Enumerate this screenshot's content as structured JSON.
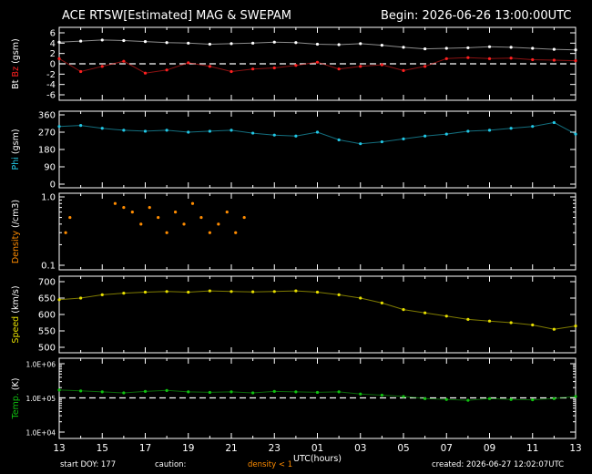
{
  "header": {
    "title": "ACE RTSW[Estimated] MAG & SWEPAM",
    "begin": "Begin: 2026-06-26 13:00:00UTC"
  },
  "footer": {
    "start_doy": "start DOY: 177",
    "caution": "caution:",
    "density_note": "density < 1",
    "created": "created: 2026-06-27 12:02:07UTC"
  },
  "colors": {
    "bt": "#ffffff",
    "bz": "#ff2020",
    "phi": "#22c8e6",
    "density": "#ff8c00",
    "speed": "#e8e000",
    "temp": "#10c010",
    "axis": "#ffffff",
    "background": "#000000"
  },
  "chart_data": {
    "type": "scatter",
    "xlabel": "UTC(hours)",
    "x_ticks": [
      "13",
      "15",
      "17",
      "19",
      "21",
      "23",
      "01",
      "03",
      "05",
      "07",
      "09",
      "11",
      "13"
    ],
    "x_range_hours": [
      0,
      24
    ],
    "panels": [
      {
        "id": "mag",
        "ylabel_parts": [
          {
            "text": "Bt",
            "color": "#ffffff"
          },
          {
            "text": "Bz",
            "color": "#ff2020"
          },
          {
            "text": "(gsm)",
            "color": "#ffffff"
          }
        ],
        "ylim": [
          -6,
          6
        ],
        "yticks": [
          "-6",
          "-4",
          "-2",
          "0",
          "2",
          "4",
          "6"
        ],
        "ytick_values": [
          -6,
          -4,
          -2,
          0,
          2,
          4,
          6
        ],
        "reference_line": 0,
        "series": [
          {
            "name": "Bt",
            "color": "#ffffff",
            "x": [
              0,
              1,
              2,
              3,
              4,
              5,
              6,
              7,
              8,
              9,
              10,
              11,
              12,
              13,
              14,
              15,
              16,
              17,
              18,
              19,
              20,
              21,
              22,
              23,
              24
            ],
            "y": [
              4.2,
              4.4,
              4.6,
              4.5,
              4.3,
              4.1,
              4.0,
              3.8,
              3.9,
              4.0,
              4.2,
              4.1,
              3.8,
              3.7,
              3.9,
              3.6,
              3.2,
              2.9,
              3.0,
              3.1,
              3.3,
              3.2,
              3.0,
              2.8,
              2.7
            ]
          },
          {
            "name": "Bz",
            "color": "#ff2020",
            "x": [
              0,
              1,
              2,
              3,
              4,
              5,
              6,
              7,
              8,
              9,
              10,
              11,
              12,
              13,
              14,
              15,
              16,
              17,
              18,
              19,
              20,
              21,
              22,
              23,
              24
            ],
            "y": [
              1.0,
              -1.5,
              -0.5,
              0.5,
              -1.8,
              -1.2,
              0.2,
              -0.5,
              -1.5,
              -1.0,
              -0.8,
              -0.3,
              0.3,
              -1.0,
              -0.5,
              -0.2,
              -1.3,
              -0.5,
              1.0,
              1.2,
              1.0,
              1.1,
              0.8,
              0.7,
              0.6
            ]
          }
        ]
      },
      {
        "id": "phi",
        "ylabel_parts": [
          {
            "text": "Phi",
            "color": "#22c8e6"
          },
          {
            "text": "(gsm)",
            "color": "#ffffff"
          }
        ],
        "ylim": [
          0,
          360
        ],
        "yticks": [
          "0",
          "90",
          "180",
          "270",
          "360"
        ],
        "ytick_values": [
          0,
          90,
          180,
          270,
          360
        ],
        "series": [
          {
            "name": "Phi",
            "color": "#22c8e6",
            "x": [
              0,
              1,
              2,
              3,
              4,
              5,
              6,
              7,
              8,
              9,
              10,
              11,
              12,
              13,
              14,
              15,
              16,
              17,
              18,
              19,
              20,
              21,
              22,
              23,
              24
            ],
            "y": [
              300,
              305,
              290,
              280,
              275,
              280,
              270,
              275,
              280,
              265,
              255,
              250,
              270,
              230,
              210,
              220,
              235,
              250,
              260,
              275,
              280,
              290,
              300,
              320,
              260
            ]
          }
        ]
      },
      {
        "id": "density",
        "ylabel_parts": [
          {
            "text": "Density",
            "color": "#ff8c00"
          },
          {
            "text": "(/cm3)",
            "color": "#ffffff"
          }
        ],
        "ylim": [
          0.1,
          1.0
        ],
        "yscale": "log",
        "yticks": [
          "0.1",
          "1.0"
        ],
        "ytick_values": [
          0.1,
          1.0
        ],
        "series": [
          {
            "name": "Density",
            "color": "#ff8c00",
            "x": [
              0.3,
              0.5,
              2.6,
              3.0,
              3.4,
              3.8,
              4.2,
              4.6,
              5.0,
              5.4,
              5.8,
              6.2,
              6.6,
              7.0,
              7.4,
              7.8,
              8.2,
              8.6
            ],
            "y": [
              0.3,
              0.5,
              0.8,
              0.7,
              0.6,
              0.4,
              0.7,
              0.5,
              0.3,
              0.6,
              0.4,
              0.8,
              0.5,
              0.3,
              0.4,
              0.6,
              0.3,
              0.5
            ]
          }
        ]
      },
      {
        "id": "speed",
        "ylabel_parts": [
          {
            "text": "Speed",
            "color": "#e8e000"
          },
          {
            "text": "(km/s)",
            "color": "#ffffff"
          }
        ],
        "ylim": [
          500,
          700
        ],
        "yticks": [
          "500",
          "550",
          "600",
          "650",
          "700"
        ],
        "ytick_values": [
          500,
          550,
          600,
          650,
          700
        ],
        "series": [
          {
            "name": "Speed",
            "color": "#e8e000",
            "x": [
              0,
              1,
              2,
              3,
              4,
              5,
              6,
              7,
              8,
              9,
              10,
              11,
              12,
              13,
              14,
              15,
              16,
              17,
              18,
              19,
              20,
              21,
              22,
              23,
              24
            ],
            "y": [
              645,
              650,
              660,
              665,
              668,
              670,
              668,
              672,
              670,
              669,
              670,
              672,
              668,
              660,
              650,
              635,
              615,
              605,
              595,
              585,
              580,
              575,
              568,
              555,
              565
            ]
          }
        ]
      },
      {
        "id": "temp",
        "ylabel_parts": [
          {
            "text": "Temp.",
            "color": "#10c010"
          },
          {
            "text": "(K)",
            "color": "#ffffff"
          }
        ],
        "ylim": [
          10000,
          1000000
        ],
        "yscale": "log",
        "yticks": [
          "1.0E+04",
          "1.0E+05",
          "1.0E+06"
        ],
        "ytick_values": [
          10000,
          100000,
          1000000
        ],
        "reference_line": 100000,
        "series": [
          {
            "name": "Temp",
            "color": "#10c010",
            "x": [
              0,
              1,
              2,
              3,
              4,
              5,
              6,
              7,
              8,
              9,
              10,
              11,
              12,
              13,
              14,
              15,
              16,
              17,
              18,
              19,
              20,
              21,
              22,
              23,
              24
            ],
            "y": [
              170000,
              160000,
              150000,
              140000,
              155000,
              165000,
              150000,
              145000,
              150000,
              140000,
              155000,
              150000,
              145000,
              150000,
              130000,
              120000,
              110000,
              95000,
              90000,
              85000,
              95000,
              90000,
              88000,
              95000,
              110000
            ]
          }
        ]
      }
    ]
  }
}
